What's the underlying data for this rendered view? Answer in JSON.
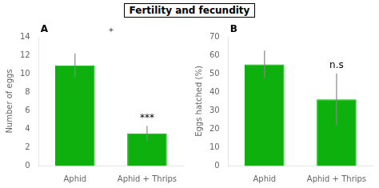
{
  "chart_data": [
    {
      "type": "bar",
      "title": "Fertility and fecundity",
      "categories": [
        "Aphid",
        "Aphid + Thrips"
      ],
      "values": [
        10.9,
        3.5
      ],
      "errors": [
        1.3,
        0.8
      ],
      "color": "#0db00d",
      "y_label": "Number of eggs",
      "ylim": [
        0,
        14
      ],
      "yticks": [
        0,
        2,
        4,
        6,
        8,
        10,
        12,
        14
      ],
      "grid": false,
      "annotations": [
        "A",
        "***",
        "✦"
      ]
    },
    {
      "type": "bar",
      "categories": [
        "Aphid",
        "Aphid + Thrips"
      ],
      "values": [
        55.0,
        36.0
      ],
      "errors": [
        7.5,
        14.0
      ],
      "color": "#0db00d",
      "y_label": "Eggs hatched (%)",
      "ylim": [
        0,
        70
      ],
      "yticks": [
        0,
        10,
        20,
        30,
        40,
        50,
        60,
        70
      ],
      "grid": false,
      "annotations": [
        "B",
        "n.s"
      ]
    }
  ]
}
